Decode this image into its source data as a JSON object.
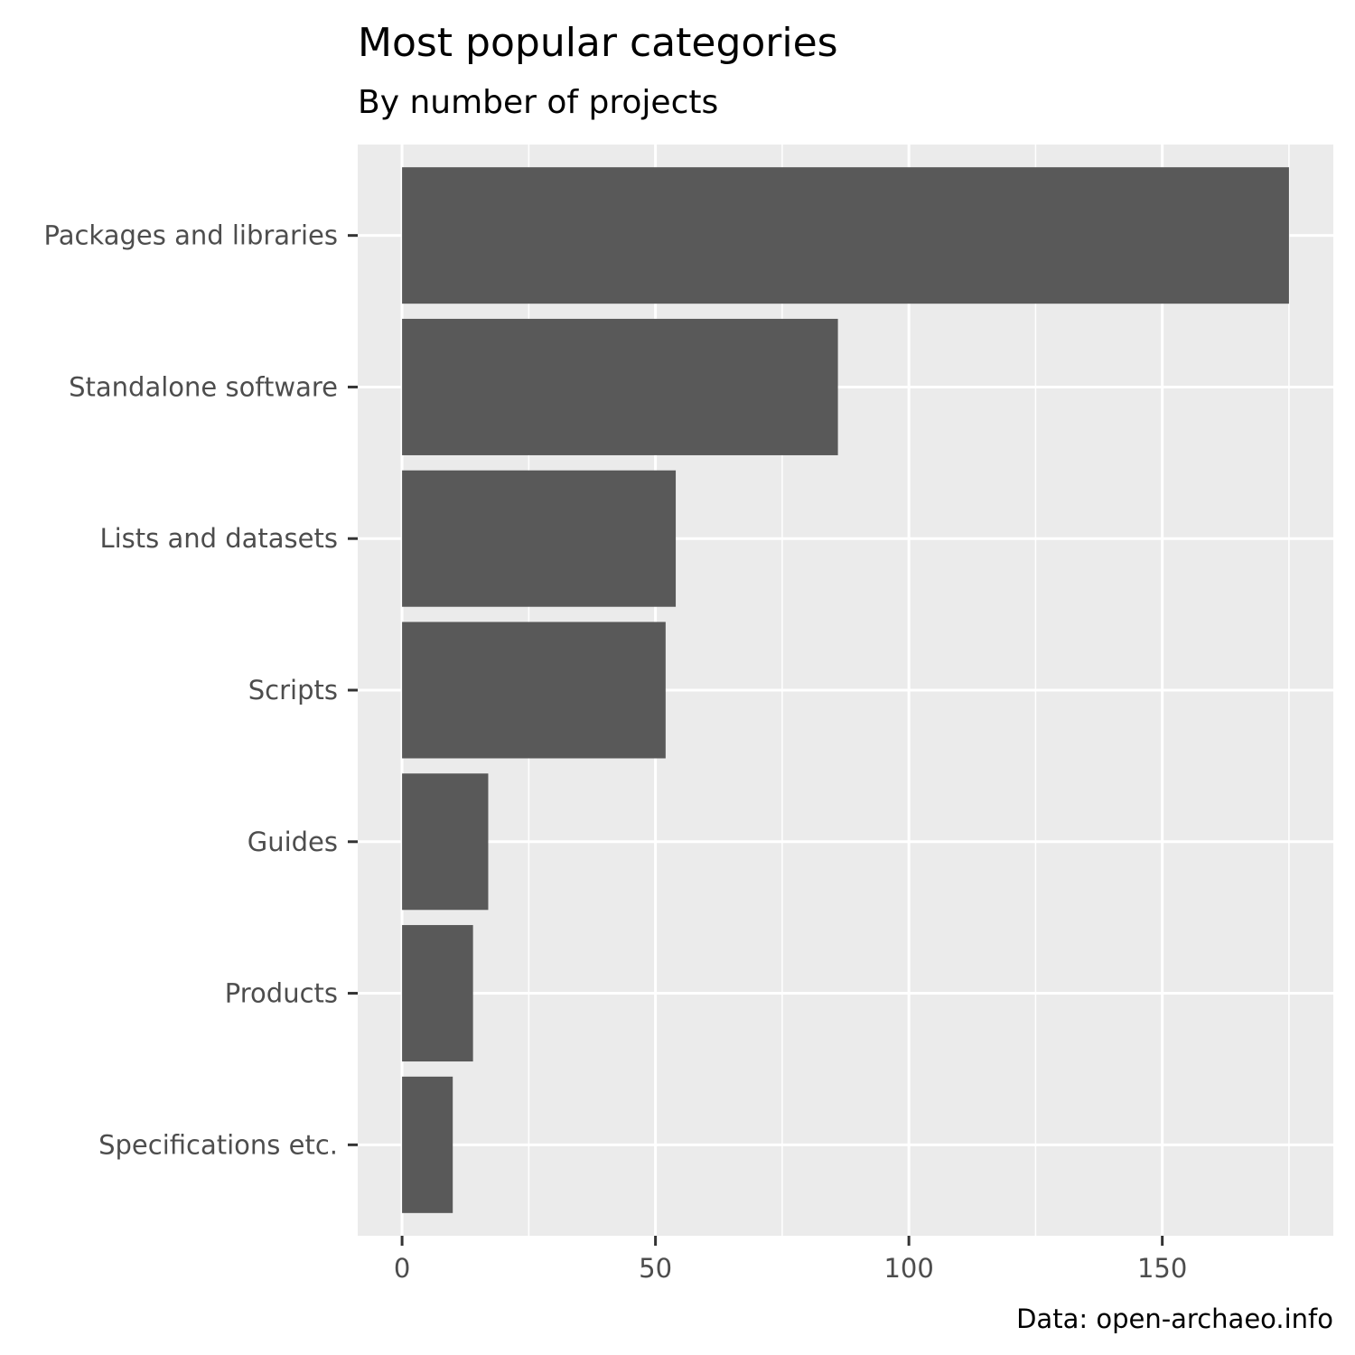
{
  "chart_data": {
    "type": "bar",
    "orientation": "horizontal",
    "title": "Most popular categories",
    "subtitle": "By number of projects",
    "caption": "Data: open-archaeo.info",
    "xlabel": "",
    "ylabel": "",
    "categories": [
      "Packages and libraries",
      "Standalone software",
      "Lists and datasets",
      "Scripts",
      "Guides",
      "Products",
      "Specifications etc."
    ],
    "values": [
      175,
      86,
      54,
      52,
      17,
      14,
      10
    ],
    "xlim": [
      -8.75,
      183.75
    ],
    "x_ticks": [
      0,
      50,
      100,
      150
    ],
    "grid": true,
    "colors": {
      "bar": "#595959",
      "panel": "#ebebeb",
      "grid": "#ffffff",
      "tick_text": "#4d4d4d",
      "tick_mark": "#333333"
    }
  }
}
